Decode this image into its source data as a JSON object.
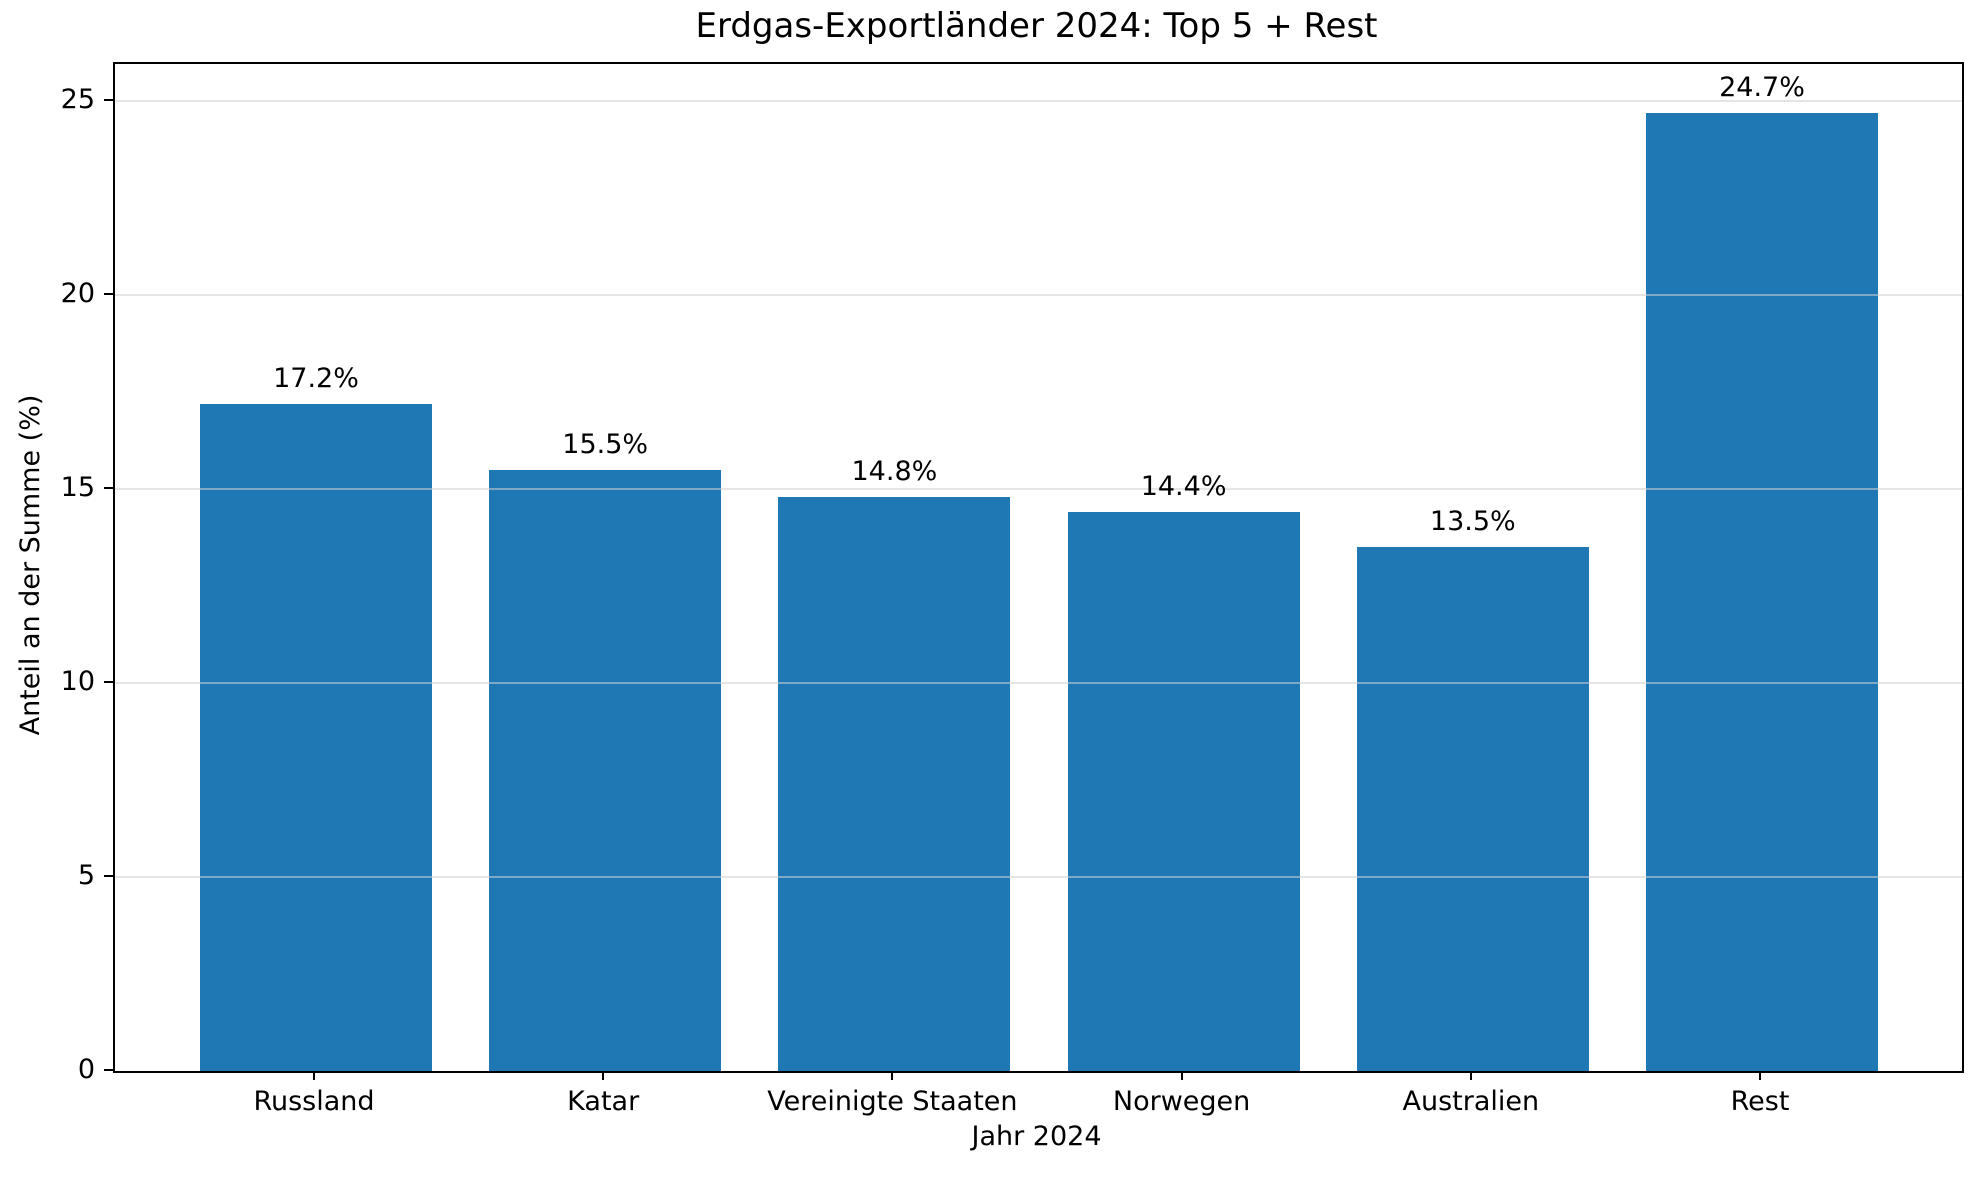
{
  "chart_data": {
    "type": "bar",
    "title": "Erdgas-Exportländer 2024: Top 5 + Rest",
    "xlabel": "Jahr 2024",
    "ylabel": "Anteil an der Summe (%)",
    "categories": [
      "Russland",
      "Katar",
      "Vereinigte Staaten",
      "Norwegen",
      "Australien",
      "Rest"
    ],
    "values": [
      17.2,
      15.5,
      14.8,
      14.4,
      13.5,
      24.7
    ],
    "value_labels": [
      "17.2%",
      "15.5%",
      "14.8%",
      "14.4%",
      "13.5%",
      "24.7%"
    ],
    "yticks": [
      0,
      5,
      10,
      15,
      20,
      25
    ],
    "ytick_labels": [
      "0",
      "5",
      "10",
      "15",
      "20",
      "25"
    ],
    "ylim": [
      0,
      25.95
    ],
    "grid": "horizontal",
    "grid_above_bars": true,
    "legend": "none",
    "colors": {
      "bar": "#1f77b4",
      "grid": "#d0d0d0",
      "grid_opacity": 0.55,
      "axis": "#000000",
      "text": "#000000",
      "background": "#ffffff"
    }
  }
}
